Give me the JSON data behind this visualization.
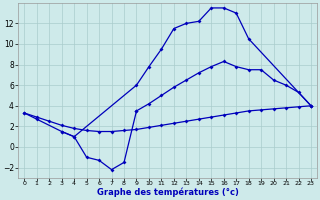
{
  "xlabel": "Graphe des températures (°c)",
  "background_color": "#ceeaea",
  "line_color": "#0000bb",
  "grid_color": "#aacccc",
  "ylim": [
    -3,
    14
  ],
  "xlim": [
    -0.5,
    23.5
  ],
  "yticks": [
    -2,
    0,
    2,
    4,
    6,
    8,
    10,
    12
  ],
  "xticks": [
    0,
    1,
    2,
    3,
    4,
    5,
    6,
    7,
    8,
    9,
    10,
    11,
    12,
    13,
    14,
    15,
    16,
    17,
    18,
    19,
    20,
    21,
    22,
    23
  ],
  "line_top_x": [
    0,
    1,
    3,
    4,
    9,
    10,
    11,
    12,
    13,
    14,
    15,
    16,
    17,
    18,
    23
  ],
  "line_top_y": [
    3.3,
    2.7,
    1.5,
    1.0,
    6.0,
    7.8,
    9.5,
    11.5,
    12.0,
    12.2,
    13.5,
    13.5,
    13.0,
    10.5,
    4.0
  ],
  "line_bot_x": [
    3,
    4,
    5,
    6,
    7,
    8,
    9
  ],
  "line_bot_y": [
    1.5,
    1.0,
    -1.0,
    -1.3,
    -2.2,
    -1.5,
    3.5
  ],
  "line_flat_x": [
    0,
    1,
    2,
    3,
    4,
    5,
    6,
    7,
    8,
    9,
    10,
    11,
    12,
    13,
    14,
    15,
    16,
    17,
    18,
    19,
    20,
    21,
    22,
    23
  ],
  "line_flat_y": [
    3.3,
    2.9,
    2.5,
    2.1,
    1.8,
    1.6,
    1.5,
    1.5,
    1.6,
    1.7,
    1.9,
    2.1,
    2.3,
    2.5,
    2.7,
    2.9,
    3.1,
    3.3,
    3.5,
    3.6,
    3.7,
    3.8,
    3.9,
    4.0
  ],
  "line_mid_x": [
    9,
    10,
    11,
    12,
    13,
    14,
    15,
    16,
    17,
    18,
    19,
    20,
    21,
    22,
    23
  ],
  "line_mid_y": [
    3.5,
    4.2,
    5.0,
    5.8,
    6.5,
    7.2,
    7.8,
    8.3,
    7.8,
    7.5,
    7.5,
    6.5,
    6.0,
    5.3,
    4.0
  ]
}
